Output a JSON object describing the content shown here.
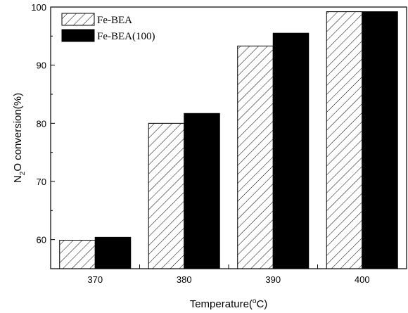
{
  "chart_data": {
    "type": "bar",
    "categories": [
      "370",
      "380",
      "390",
      "400"
    ],
    "series": [
      {
        "name": "Fe-BEA",
        "values": [
          59.9,
          80.0,
          93.3,
          99.2
        ],
        "pattern": "hatched",
        "color": "#ffffff"
      },
      {
        "name": "Fe-BEA(100)",
        "values": [
          60.4,
          81.7,
          95.5,
          99.2
        ],
        "pattern": "solid",
        "color": "#000000"
      }
    ],
    "xlabel_main": "Temperature(",
    "xlabel_sup": "o",
    "xlabel_end": "C)",
    "ylabel_main": "N",
    "ylabel_sub": "2",
    "ylabel_end": "O conversion(%)",
    "yticks": [
      60,
      70,
      80,
      90,
      100
    ],
    "ylim": [
      55,
      100
    ],
    "legend_position": "top-left",
    "grid": false
  }
}
